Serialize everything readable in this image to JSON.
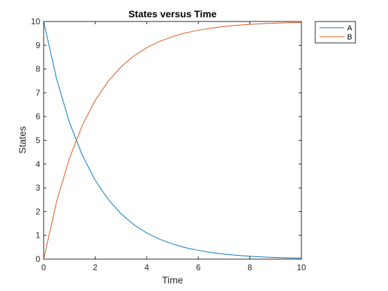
{
  "chart_data": {
    "type": "line",
    "title": "States versus Time",
    "xlabel": "Time",
    "ylabel": "States",
    "xlim": [
      0,
      10
    ],
    "ylim": [
      0,
      10
    ],
    "xticks": [
      0,
      2,
      4,
      6,
      8,
      10
    ],
    "yticks": [
      0,
      1,
      2,
      3,
      4,
      5,
      6,
      7,
      8,
      9,
      10
    ],
    "grid": false,
    "legend_position": "outside top-right",
    "x": [
      0,
      0.5,
      1,
      1.5,
      2,
      2.5,
      3,
      3.5,
      4,
      4.5,
      5,
      5.5,
      6,
      6.5,
      7,
      7.5,
      8,
      8.5,
      9,
      9.5,
      10
    ],
    "series": [
      {
        "name": "A",
        "color": "#0072BD",
        "values": [
          10,
          7.59,
          5.76,
          4.37,
          3.32,
          2.52,
          1.91,
          1.45,
          1.1,
          0.84,
          0.64,
          0.48,
          0.37,
          0.28,
          0.21,
          0.16,
          0.12,
          0.09,
          0.07,
          0.05,
          0.04
        ]
      },
      {
        "name": "B",
        "color": "#D95319",
        "values": [
          0,
          2.41,
          4.24,
          5.63,
          6.68,
          7.48,
          8.09,
          8.55,
          8.9,
          9.16,
          9.36,
          9.52,
          9.63,
          9.72,
          9.79,
          9.84,
          9.88,
          9.91,
          9.93,
          9.95,
          9.96
        ]
      }
    ]
  }
}
